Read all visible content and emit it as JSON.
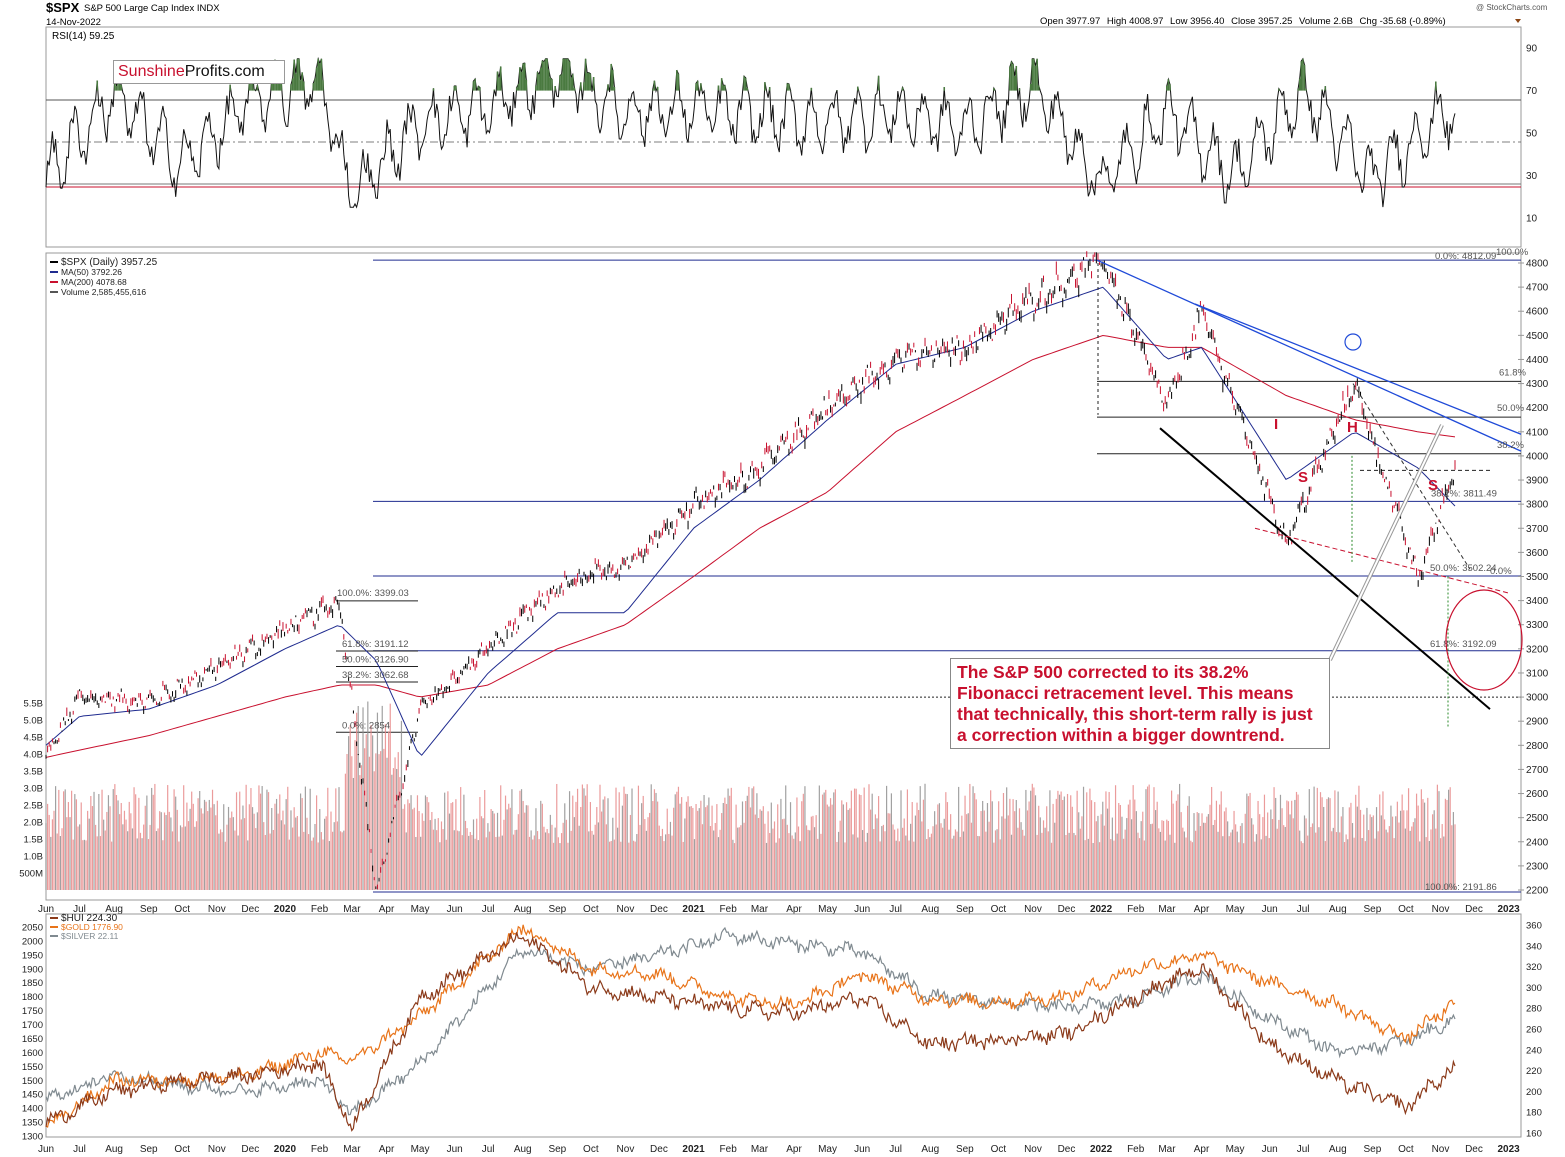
{
  "header": {
    "symbol": "$SPX",
    "name": "S&P 500 Large Cap Index",
    "exchange": "INDX",
    "date": "14-Nov-2022",
    "open_label": "Open",
    "open": "3977.97",
    "high_label": "High",
    "high": "4008.97",
    "low_label": "Low",
    "low": "3956.40",
    "close_label": "Close",
    "close": "3957.25",
    "volume_label": "Volume",
    "volume": "2.6B",
    "chg_label": "Chg",
    "chg": "-35.68 (-0.89%)",
    "watermark": "@ StockCharts.com"
  },
  "logo": {
    "part1": "Sunshine",
    "part2": "Profits.com"
  },
  "colors": {
    "price_up": "#000000",
    "price_down": "#c8102e",
    "ma50": "#1f2b8f",
    "ma200": "#c8102e",
    "fib_line": "#1f2b8f",
    "rsi_fill": "#4a7a40",
    "hui": "#8b3a1a",
    "gold": "#e8741a",
    "silver": "#808a90",
    "annotation": "#c8102e"
  },
  "rsi_panel": {
    "legend": "RSI(14) 59.25",
    "ticks": [
      "90",
      "70",
      "50",
      "30",
      "10"
    ]
  },
  "main_panel": {
    "legend": [
      {
        "text": "$SPX (Daily) 3957.25",
        "color": "#000000"
      },
      {
        "text": "MA(50) 3792.26",
        "color": "#1f2b8f"
      },
      {
        "text": "MA(200) 4078.68",
        "color": "#c8102e"
      },
      {
        "text": "Volume 2,585,455,616",
        "color": "#555555"
      }
    ],
    "price_ticks": [
      "4800",
      "4700",
      "4600",
      "4500",
      "4400",
      "4300",
      "4200",
      "4100",
      "4000",
      "3900",
      "3800",
      "3700",
      "3600",
      "3500",
      "3400",
      "3300",
      "3200",
      "3100",
      "3000",
      "2900",
      "2800",
      "2700",
      "2600",
      "2500",
      "2400",
      "2300",
      "2200"
    ],
    "volume_ticks": [
      "5.5B",
      "5.0B",
      "4.5B",
      "4.0B",
      "3.5B",
      "3.0B",
      "2.5B",
      "2.0B",
      "1.5B",
      "1.0B",
      "500M"
    ],
    "fib_labels": [
      "0.0%: 4812.09",
      "100.0%",
      "61.8%",
      "50.0%",
      "38.2%",
      "38.2%: 3811.49",
      "50.0%: 3502.24",
      "0.0%",
      "61.8%: 3192.09",
      "100.0%: 2191.86",
      "100.0%: 3399.03",
      "61.8%: 3191.12",
      "50.0%: 3126.90",
      "38.2%: 3062.68",
      "0.0%: 2854"
    ],
    "pattern_labels": [
      "I",
      "S",
      "H",
      "S"
    ],
    "annotation": "The S&P 500 corrected to its 38.2% Fibonacci retracement level. This means that technically, this short-term rally is just a correction within a bigger downtrend."
  },
  "x_axis": [
    "Jun",
    "Jul",
    "Aug",
    "Sep",
    "Oct",
    "Nov",
    "Dec",
    "2020",
    "Feb",
    "Mar",
    "Apr",
    "May",
    "Jun",
    "Jul",
    "Aug",
    "Sep",
    "Oct",
    "Nov",
    "Dec",
    "2021",
    "Feb",
    "Mar",
    "Apr",
    "May",
    "Jun",
    "Jul",
    "Aug",
    "Sep",
    "Oct",
    "Nov",
    "Dec",
    "2022",
    "Feb",
    "Mar",
    "Apr",
    "May",
    "Jun",
    "Jul",
    "Aug",
    "Sep",
    "Oct",
    "Nov",
    "Dec",
    "2023"
  ],
  "lower_panel": {
    "legend": [
      {
        "text": "$HUI 224.30",
        "color": "#8b3a1a"
      },
      {
        "text": "$GOLD 1776.90",
        "color": "#e8741a"
      },
      {
        "text": "$SILVER 22.11",
        "color": "#808a90"
      }
    ],
    "left_ticks": [
      "2050",
      "2000",
      "1950",
      "1900",
      "1850",
      "1800",
      "1750",
      "1700",
      "1650",
      "1600",
      "1550",
      "1500",
      "1450",
      "1400",
      "1350",
      "1300"
    ],
    "right_ticks": [
      "360",
      "340",
      "320",
      "300",
      "280",
      "260",
      "240",
      "220",
      "200",
      "180",
      "160"
    ]
  },
  "chart_data": [
    {
      "type": "line",
      "title": "RSI(14) 59.25",
      "ylim": [
        0,
        100
      ],
      "x": [
        "2019-06",
        "2019-08",
        "2019-10",
        "2019-12",
        "2020-02",
        "2020-03",
        "2020-05",
        "2020-07",
        "2020-09",
        "2020-11",
        "2021-01",
        "2021-03",
        "2021-05",
        "2021-07",
        "2021-09",
        "2021-11",
        "2022-01",
        "2022-03",
        "2022-05",
        "2022-07",
        "2022-09",
        "2022-11"
      ],
      "series": [
        {
          "name": "RSI(14)",
          "values": [
            30,
            68,
            35,
            65,
            75,
            20,
            55,
            62,
            80,
            60,
            62,
            58,
            55,
            60,
            52,
            74,
            26,
            60,
            30,
            70,
            28,
            59.25
          ]
        }
      ]
    },
    {
      "type": "line",
      "title": "$SPX (Daily) 3957.25",
      "ylim": [
        2200,
        4800
      ],
      "x": [
        "2019-06",
        "2019-07",
        "2019-09",
        "2019-11",
        "2020-01",
        "2020-02-19",
        "2020-03-23",
        "2020-05",
        "2020-07",
        "2020-09",
        "2020-11",
        "2021-01",
        "2021-03",
        "2021-05",
        "2021-07",
        "2021-09",
        "2021-11",
        "2022-01-03",
        "2022-03",
        "2022-04",
        "2022-06-16",
        "2022-08-16",
        "2022-10-12",
        "2022-11-14"
      ],
      "series": [
        {
          "name": "$SPX",
          "values": [
            2750,
            3000,
            2980,
            3120,
            3280,
            3399,
            2192,
            2950,
            3200,
            3450,
            3550,
            3800,
            3950,
            4200,
            4400,
            4450,
            4650,
            4812,
            4200,
            4600,
            3640,
            4300,
            3490,
            3957.25
          ]
        },
        {
          "name": "MA(50)",
          "values": [
            2800,
            2920,
            2950,
            3050,
            3200,
            3300,
            3150,
            2750,
            3100,
            3350,
            3350,
            3700,
            3900,
            4150,
            4380,
            4450,
            4600,
            4700,
            4400,
            4450,
            3900,
            4100,
            3950,
            3792.26
          ]
        },
        {
          "name": "MA(200)",
          "values": [
            2750,
            2780,
            2840,
            2920,
            3000,
            3050,
            3050,
            3000,
            3050,
            3200,
            3300,
            3500,
            3700,
            3850,
            4100,
            4250,
            4400,
            4500,
            4450,
            4450,
            4250,
            4150,
            4100,
            4078.68
          ]
        }
      ],
      "horizontal_levels": [
        4812.09,
        4309,
        4161,
        4009,
        3811.49,
        3502.24,
        3192.09,
        3000,
        2191.86
      ],
      "volume": {
        "name": "Volume",
        "last": 2585455616,
        "typical": 2500000000,
        "ylim": [
          0,
          5500000000
        ]
      }
    },
    {
      "type": "line",
      "title": "$HUI / $GOLD / $SILVER",
      "x": [
        "2019-06",
        "2019-08",
        "2019-10",
        "2019-12",
        "2020-02",
        "2020-03",
        "2020-05",
        "2020-08",
        "2020-10",
        "2020-12",
        "2021-02",
        "2021-04",
        "2021-06",
        "2021-08",
        "2021-10",
        "2021-12",
        "2022-02",
        "2022-04",
        "2022-06",
        "2022-08",
        "2022-10",
        "2022-11-14"
      ],
      "series": [
        {
          "name": "$HUI",
          "axis": "right",
          "values": [
            170,
            200,
            210,
            215,
            228,
            165,
            290,
            350,
            300,
            290,
            280,
            275,
            290,
            245,
            250,
            255,
            290,
            320,
            245,
            210,
            185,
            224.3
          ]
        },
        {
          "name": "$GOLD",
          "axis": "left",
          "values": [
            1330,
            1500,
            1500,
            1520,
            1600,
            1570,
            1730,
            2050,
            1900,
            1880,
            1800,
            1770,
            1880,
            1790,
            1780,
            1800,
            1900,
            1950,
            1850,
            1770,
            1650,
            1776.9
          ]
        },
        {
          "name": "$SILVER",
          "axis": "left",
          "values": [
            1430,
            1520,
            1480,
            1460,
            1500,
            1380,
            1560,
            1970,
            1900,
            1950,
            2020,
            1990,
            1960,
            1800,
            1780,
            1760,
            1790,
            1880,
            1720,
            1600,
            1640,
            1720
          ]
        }
      ]
    }
  ]
}
